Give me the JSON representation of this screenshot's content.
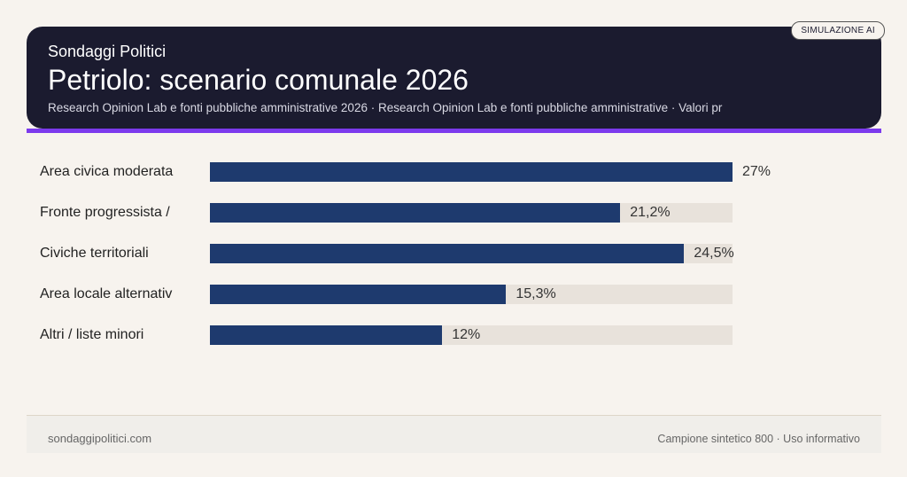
{
  "header": {
    "brand": "Sondaggi Politici",
    "title": "Petriolo: scenario comunale 2026",
    "subtitle": "Research Opinion Lab e fonti pubbliche amministrative 2026 · Research Opinion Lab e fonti pubbliche amministrative · Valori pr",
    "badge": "SIMULAZIONE AI"
  },
  "colors": {
    "bar": "#1e3a6e",
    "track": "#e8e2db",
    "header": "#1b1b2f",
    "accent": "#7c3aed"
  },
  "chart_data": {
    "type": "bar",
    "orientation": "horizontal",
    "categories": [
      "Area civica moderata",
      "Fronte progressista /",
      "Civiche territoriali",
      "Area locale alternativ",
      "Altri / liste minori"
    ],
    "values": [
      27,
      21.2,
      24.5,
      15.3,
      12
    ],
    "labels": [
      "27%",
      "21,2%",
      "24,5%",
      "15,3%",
      "12%"
    ],
    "xlim": [
      0,
      27
    ],
    "grid": false
  },
  "footer": {
    "left": "sondaggipolitici.com",
    "right": "Campione sintetico 800 · Uso informativo"
  }
}
